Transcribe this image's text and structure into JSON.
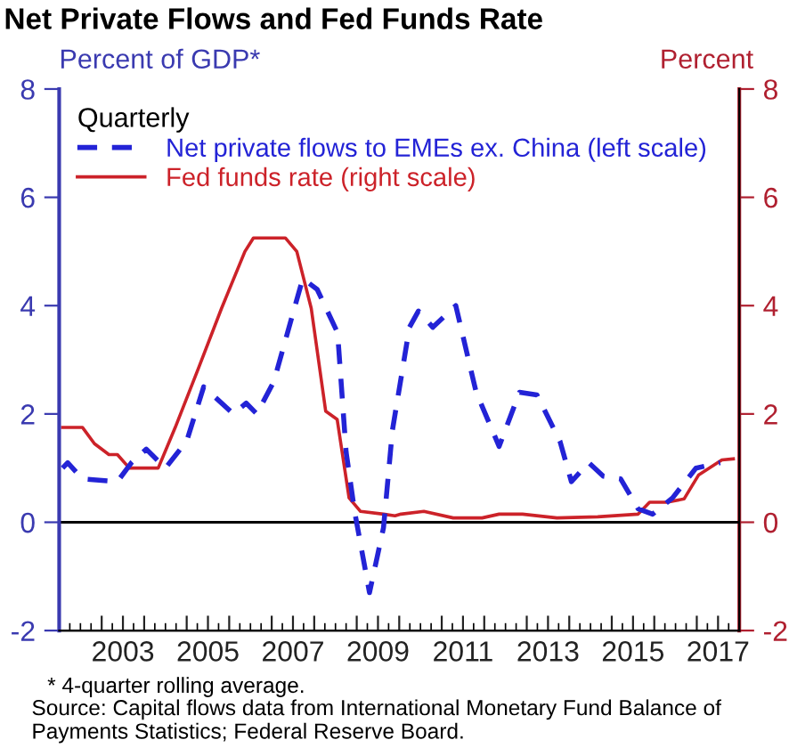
{
  "chart_data": {
    "type": "line",
    "title": "Net Private Flows and Fed Funds Rate",
    "ylabel": "Percent of GDP*",
    "y2label": "Percent",
    "legend_title": "Quarterly",
    "legend": "top left",
    "grid": false,
    "series": [
      {
        "name": "Net private flows to EMEs ex. China (left scale)",
        "color": "#2323d6",
        "line_style": "dashed",
        "x": [
          2002.08,
          2002.2,
          2002.55,
          2003.37,
          2003.7,
          2004.05,
          2004.5,
          2005.0,
          2005.4,
          2006.1,
          2006.4,
          2006.65,
          2007.05,
          2007.73,
          2008.07,
          2008.55,
          2008.75,
          2008.95,
          2009.3,
          2009.63,
          2009.84,
          2010.24,
          2010.45,
          2010.79,
          2011.33,
          2011.81,
          2012.35,
          2012.83,
          2013.24,
          2013.78,
          2014.05,
          2014.46,
          2014.8,
          2015.21,
          2015.62,
          2015.96,
          2016.43,
          2016.98,
          2017.55
        ],
        "values": [
          1.0,
          1.1,
          0.8,
          0.75,
          1.1,
          1.35,
          1.0,
          1.5,
          2.5,
          2.0,
          2.2,
          2.0,
          2.6,
          4.5,
          4.3,
          3.5,
          1.3,
          0.2,
          -1.3,
          -0.1,
          1.7,
          3.6,
          3.9,
          3.6,
          4.0,
          2.4,
          1.4,
          2.4,
          2.35,
          1.5,
          0.75,
          1.1,
          0.85,
          0.8,
          0.25,
          0.15,
          0.45,
          1.0,
          1.1
        ]
      },
      {
        "name": "Fed funds rate (right scale)",
        "color": "#cc2229",
        "line_style": "solid",
        "axis": "y2",
        "x": [
          2002.08,
          2002.55,
          2002.83,
          2003.17,
          2003.37,
          2003.65,
          2004.33,
          2004.73,
          2005.28,
          2005.82,
          2006.37,
          2006.57,
          2007.32,
          2007.59,
          2007.93,
          2008.27,
          2008.54,
          2008.82,
          2009.09,
          2009.63,
          2009.9,
          2010.04,
          2010.58,
          2011.27,
          2011.95,
          2012.35,
          2012.9,
          2013.71,
          2014.67,
          2015.62,
          2015.89,
          2016.3,
          2016.7,
          2017.04,
          2017.59,
          2017.86
        ],
        "values": [
          1.75,
          1.75,
          1.45,
          1.25,
          1.25,
          1.0,
          1.0,
          1.75,
          2.85,
          3.95,
          5.0,
          5.25,
          5.25,
          5.0,
          3.95,
          2.05,
          1.9,
          0.45,
          0.2,
          0.15,
          0.12,
          0.15,
          0.2,
          0.08,
          0.08,
          0.15,
          0.15,
          0.08,
          0.1,
          0.15,
          0.37,
          0.37,
          0.43,
          0.87,
          1.15,
          1.17
        ]
      }
    ],
    "xlim": [
      2002,
      2018
    ],
    "xticks": [
      {
        "value": 2002,
        "label": null
      },
      {
        "value": 2003,
        "label": null
      },
      {
        "value": 2003.5,
        "label": "2003"
      },
      {
        "value": 2004,
        "label": null
      },
      {
        "value": 2005,
        "label": null
      },
      {
        "value": 2005.5,
        "label": "2005"
      },
      {
        "value": 2006,
        "label": null
      },
      {
        "value": 2007,
        "label": null
      },
      {
        "value": 2007.5,
        "label": "2007"
      },
      {
        "value": 2008,
        "label": null
      },
      {
        "value": 2009,
        "label": null
      },
      {
        "value": 2009.5,
        "label": "2009"
      },
      {
        "value": 2010,
        "label": null
      },
      {
        "value": 2011,
        "label": null
      },
      {
        "value": 2011.5,
        "label": "2011"
      },
      {
        "value": 2012,
        "label": null
      },
      {
        "value": 2013,
        "label": null
      },
      {
        "value": 2013.5,
        "label": "2013"
      },
      {
        "value": 2014,
        "label": null
      },
      {
        "value": 2015,
        "label": null
      },
      {
        "value": 2015.5,
        "label": "2015"
      },
      {
        "value": 2016,
        "label": null
      },
      {
        "value": 2017,
        "label": null
      },
      {
        "value": 2017.5,
        "label": "2017"
      }
    ],
    "ylim": [
      -2,
      8
    ],
    "yticks": [
      -2,
      0,
      2,
      4,
      6,
      8
    ],
    "y2lim": [
      -2,
      8
    ],
    "y2ticks": [
      -2,
      0,
      2,
      4,
      6,
      8
    ],
    "ref_lines": [
      {
        "axis": "y",
        "value": 0,
        "color": "#000000",
        "line_style": "solid"
      }
    ],
    "annotations": [
      "* 4-quarter rolling average.",
      "Source: Capital flows data from International Monetary Fund Balance of Payments Statistics; Federal Reserve Board."
    ]
  }
}
